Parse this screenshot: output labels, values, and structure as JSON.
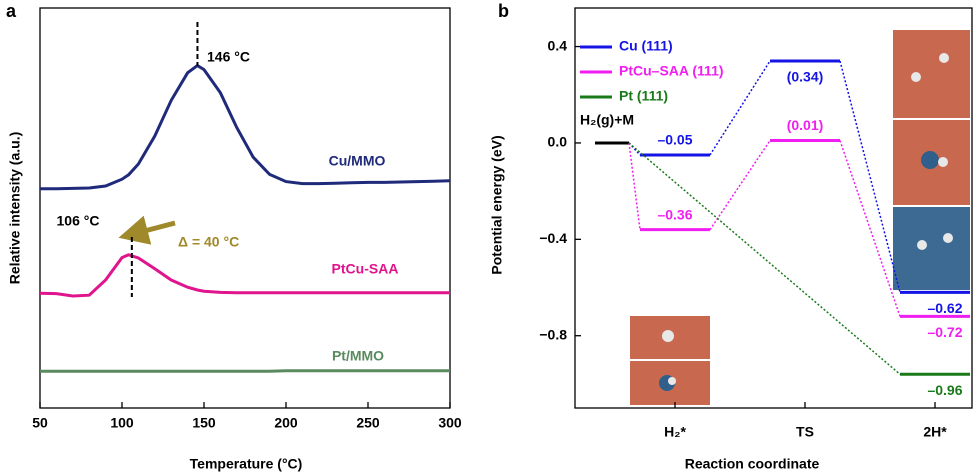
{
  "chart_data": [
    {
      "type": "line",
      "panel": "a",
      "xlabel": "Temperature (°C)",
      "ylabel": "Relative intensity (a.u.)",
      "x": [
        50,
        60,
        70,
        80,
        90,
        100,
        104,
        110,
        120,
        130,
        140,
        146,
        150,
        160,
        170,
        180,
        190,
        200,
        210,
        220,
        230,
        240,
        250,
        260,
        270,
        280,
        290,
        300
      ],
      "xlim": [
        50,
        300
      ],
      "xticks": [
        50,
        100,
        150,
        200,
        250,
        300
      ],
      "ylim": [
        0,
        100
      ],
      "series": [
        {
          "name": "Cu/MMO",
          "color": "#1f2a7a",
          "values": [
            54.8,
            54.8,
            54.9,
            55.0,
            55.5,
            57.2,
            58.3,
            61.0,
            68.0,
            76.9,
            83.8,
            85.6,
            84.6,
            78.8,
            70.1,
            62.7,
            58.4,
            56.6,
            56.1,
            56.1,
            56.2,
            56.3,
            56.4,
            56.4,
            56.5,
            56.6,
            56.7,
            56.8
          ]
        },
        {
          "name": "PtCu-SAA",
          "color": "#e0148c",
          "values": [
            28.7,
            28.6,
            28.0,
            28.2,
            32.0,
            37.6,
            38.3,
            37.5,
            34.8,
            32.0,
            30.2,
            29.5,
            29.2,
            28.9,
            28.8,
            28.8,
            28.8,
            28.8,
            28.8,
            28.8,
            28.8,
            28.8,
            28.8,
            28.8,
            28.8,
            28.8,
            28.8,
            28.8
          ]
        },
        {
          "name": "Pt/MMO",
          "color": "#5a8a5f",
          "values": [
            9.2,
            9.2,
            9.2,
            9.2,
            9.2,
            9.2,
            9.2,
            9.2,
            9.2,
            9.2,
            9.2,
            9.2,
            9.2,
            9.2,
            9.2,
            9.2,
            9.2,
            9.3,
            9.3,
            9.3,
            9.3,
            9.3,
            9.3,
            9.3,
            9.3,
            9.3,
            9.3,
            9.3
          ]
        }
      ],
      "annotations": [
        {
          "text": "146 °C",
          "x": 146
        },
        {
          "text": "106 °C",
          "x": 106
        }
      ],
      "shift_label": "Δ = 40 °C",
      "shift_color": "#a0892a"
    },
    {
      "type": "energy_diagram",
      "panel": "b",
      "xlabel": "Reaction coordinate",
      "ylabel": "Potential energy (eV)",
      "categories": [
        null,
        "H₂*",
        "TS",
        "2H*"
      ],
      "initial_label": "H₂(g)+M",
      "initial_color": "#000000",
      "ylim": [
        -1.1,
        0.56
      ],
      "yticks": [
        0.4,
        {
          "value": 0,
          "label": "0.0"
        },
        {
          "value": -0.4,
          "label": "−0.4"
        },
        {
          "value": -0.8,
          "label": "−0.8"
        }
      ],
      "series": [
        {
          "name": "Cu (111)",
          "color": "#1414e6",
          "values": [
            0,
            -0.05,
            0.34,
            -0.62
          ],
          "value_labels": [
            null,
            "–0.05",
            "(0.34)",
            "–0.62"
          ]
        },
        {
          "name": "PtCu–SAA (111)",
          "color": "#f01ef0",
          "values": [
            0,
            -0.36,
            0.01,
            -0.72
          ],
          "value_labels": [
            null,
            "–0.36",
            "(0.01)",
            "–0.72"
          ]
        },
        {
          "name": "Pt (111)",
          "color": "#1a7a1a",
          "values": [
            0,
            null,
            null,
            -0.96
          ],
          "value_labels": [
            null,
            null,
            null,
            "–0.96"
          ]
        }
      ]
    }
  ]
}
